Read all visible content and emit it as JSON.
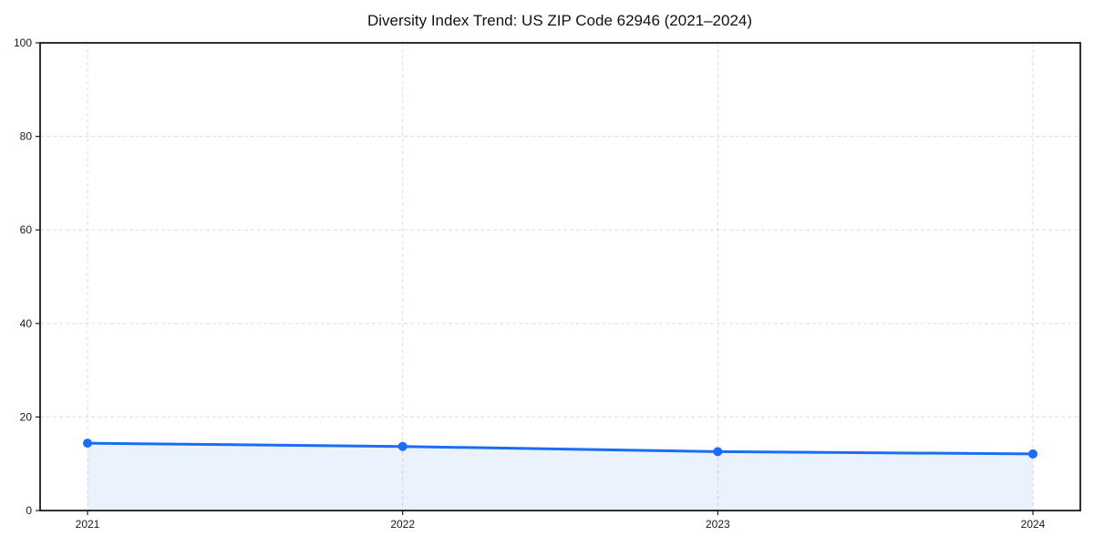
{
  "chart_data": {
    "type": "line",
    "title": "Diversity Index Trend: US ZIP Code 62946 (2021–2024)",
    "x": [
      2021,
      2022,
      2023,
      2024
    ],
    "xticklabels": [
      "2021",
      "2022",
      "2023",
      "2024"
    ],
    "series": [
      {
        "name": "Diversity Index",
        "values": [
          14.4,
          13.7,
          12.6,
          12.1
        ]
      }
    ],
    "xlabel": "",
    "ylabel": "",
    "ylim": [
      0,
      100
    ],
    "yticks": [
      0,
      20,
      40,
      60,
      80,
      100
    ],
    "grid": true,
    "grid_style": "dashed",
    "legend": false,
    "marker": "circle",
    "area_fill": true,
    "colors": {
      "line": "#1b6ef3",
      "marker": "#1b6ef3",
      "fill": "rgba(27,110,243,0.09)",
      "grid": "#dedede",
      "axis": "#1a1a1a",
      "text": "#1a1a1a",
      "background": "#ffffff"
    }
  }
}
